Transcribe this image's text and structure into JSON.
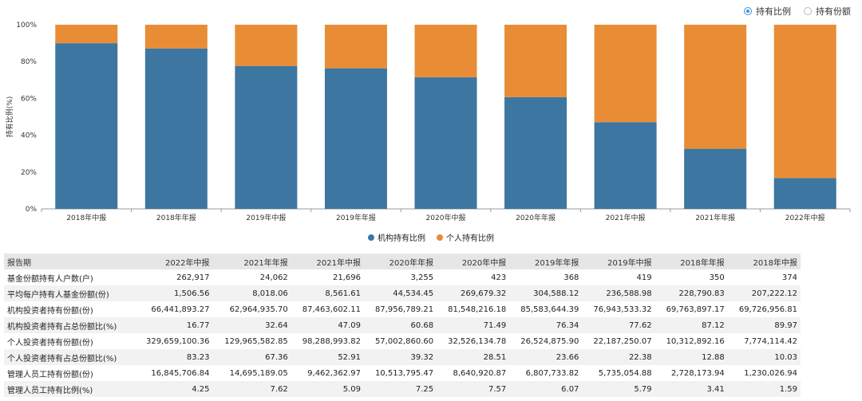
{
  "controls": {
    "options": [
      "持有比例",
      "持有份额"
    ],
    "selected": 0
  },
  "colors": {
    "institution": "#3d76a0",
    "individual": "#e98c36",
    "axis": "#999999",
    "grid": "#d8d8d8"
  },
  "legend": [
    "机构持有比例",
    "个人持有比例"
  ],
  "chart_data": {
    "type": "bar",
    "stacked": true,
    "categories": [
      "2018年中报",
      "2018年年报",
      "2019年中报",
      "2019年年报",
      "2020年中报",
      "2020年年报",
      "2021年中报",
      "2021年年报",
      "2022年中报"
    ],
    "series": [
      {
        "name": "机构持有比例",
        "values": [
          89.97,
          87.12,
          77.62,
          76.34,
          71.49,
          60.68,
          47.09,
          32.64,
          16.77
        ]
      },
      {
        "name": "个人持有比例",
        "values": [
          10.03,
          12.88,
          22.38,
          23.66,
          28.51,
          39.32,
          52.91,
          67.36,
          83.23
        ]
      }
    ],
    "ylabel": "持有比例(%)",
    "ylim": [
      0,
      100
    ],
    "yticks": [
      "0%",
      "20%",
      "40%",
      "60%",
      "80%",
      "100%"
    ],
    "legend_position": "bottom"
  },
  "table": {
    "headers": [
      "报告期",
      "2022年中报",
      "2021年年报",
      "2021年中报",
      "2020年年报",
      "2020年中报",
      "2019年年报",
      "2019年中报",
      "2018年年报",
      "2018年中报"
    ],
    "rows": [
      [
        "基金份额持有人户数(户)",
        "262,917",
        "24,062",
        "21,696",
        "3,255",
        "423",
        "368",
        "419",
        "350",
        "374"
      ],
      [
        "平均每户持有人基金份额(份)",
        "1,506.56",
        "8,018.06",
        "8,561.61",
        "44,534.45",
        "269,679.32",
        "304,588.12",
        "236,588.98",
        "228,790.83",
        "207,222.12"
      ],
      [
        "机构投资者持有份额(份)",
        "66,441,893.27",
        "62,964,935.70",
        "87,463,602.11",
        "87,956,789.21",
        "81,548,216.18",
        "85,583,644.39",
        "76,943,533.32",
        "69,763,897.17",
        "69,726,956.81"
      ],
      [
        "机构投资者持有占总份额比(%)",
        "16.77",
        "32.64",
        "47.09",
        "60.68",
        "71.49",
        "76.34",
        "77.62",
        "87.12",
        "89.97"
      ],
      [
        "个人投资者持有份额(份)",
        "329,659,100.36",
        "129,965,582.85",
        "98,288,993.82",
        "57,002,860.60",
        "32,526,134.78",
        "26,524,875.90",
        "22,187,250.07",
        "10,312,892.16",
        "7,774,114.42"
      ],
      [
        "个人投资者持有占总份额比(%)",
        "83.23",
        "67.36",
        "52.91",
        "39.32",
        "28.51",
        "23.66",
        "22.38",
        "12.88",
        "10.03"
      ],
      [
        "管理人员工持有份额(份)",
        "16,845,706.84",
        "14,695,189.05",
        "9,462,362.97",
        "10,513,795.47",
        "8,640,920.87",
        "6,807,733.82",
        "5,735,054.88",
        "2,728,173.94",
        "1,230,026.94"
      ],
      [
        "管理人员工持有比例(%)",
        "4.25",
        "7.62",
        "5.09",
        "7.25",
        "7.57",
        "6.07",
        "5.79",
        "3.41",
        "1.59"
      ]
    ]
  }
}
